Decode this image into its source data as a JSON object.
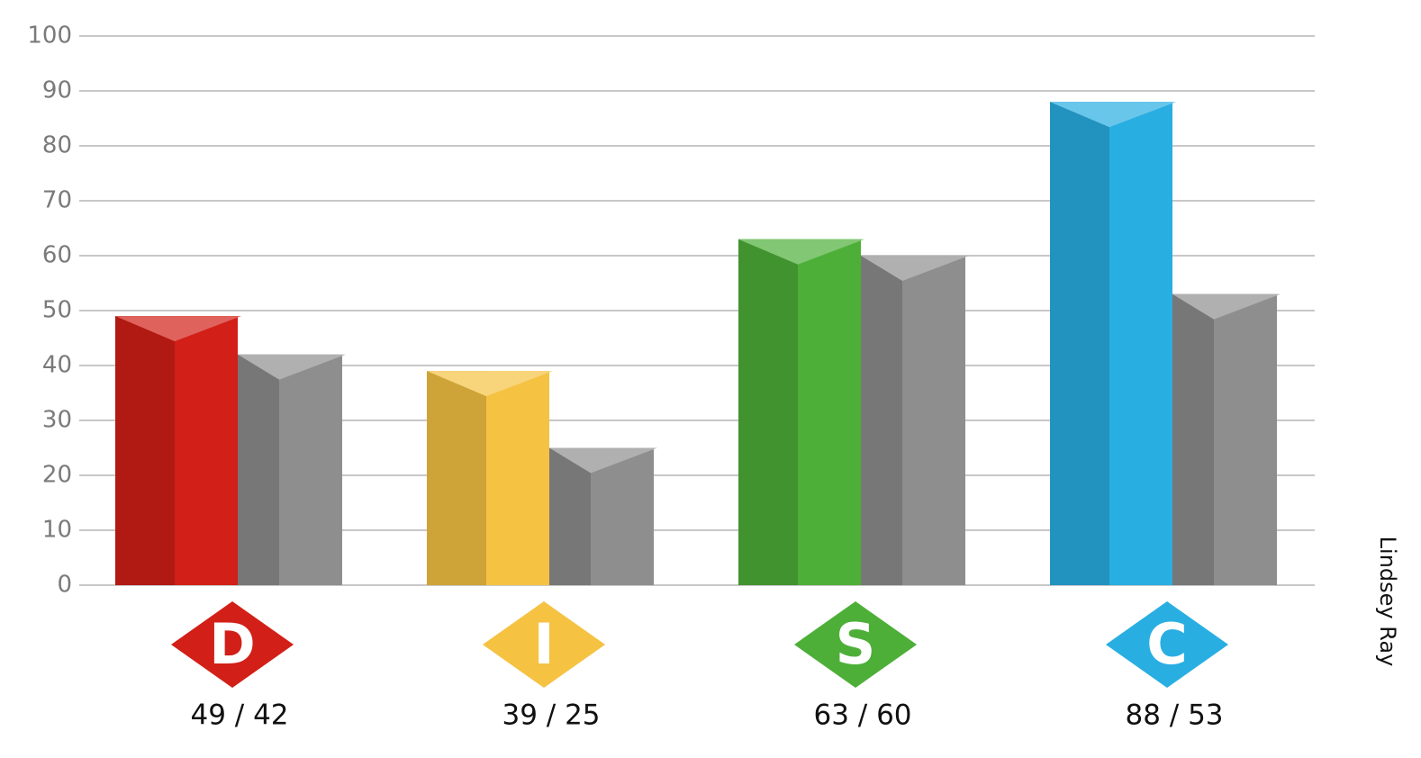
{
  "chart_data": {
    "type": "bar",
    "categories": [
      "D",
      "I",
      "S",
      "C"
    ],
    "series": [
      {
        "colors": [
          "#d21f17",
          "#f5c242",
          "#4daf38",
          "#29aee2"
        ],
        "values": [
          49,
          39,
          63,
          88
        ]
      },
      {
        "color": "#8e8e8e",
        "values": [
          42,
          25,
          60,
          53
        ]
      }
    ],
    "value_labels": [
      "49 / 42",
      "39 / 25",
      "63 / 60",
      "88 / 53"
    ],
    "annotation": "Lindsey  Ray",
    "ylim": [
      0,
      100
    ],
    "yticks": [
      0,
      10,
      20,
      30,
      40,
      50,
      60,
      70,
      80,
      90,
      100
    ],
    "grid": true
  }
}
